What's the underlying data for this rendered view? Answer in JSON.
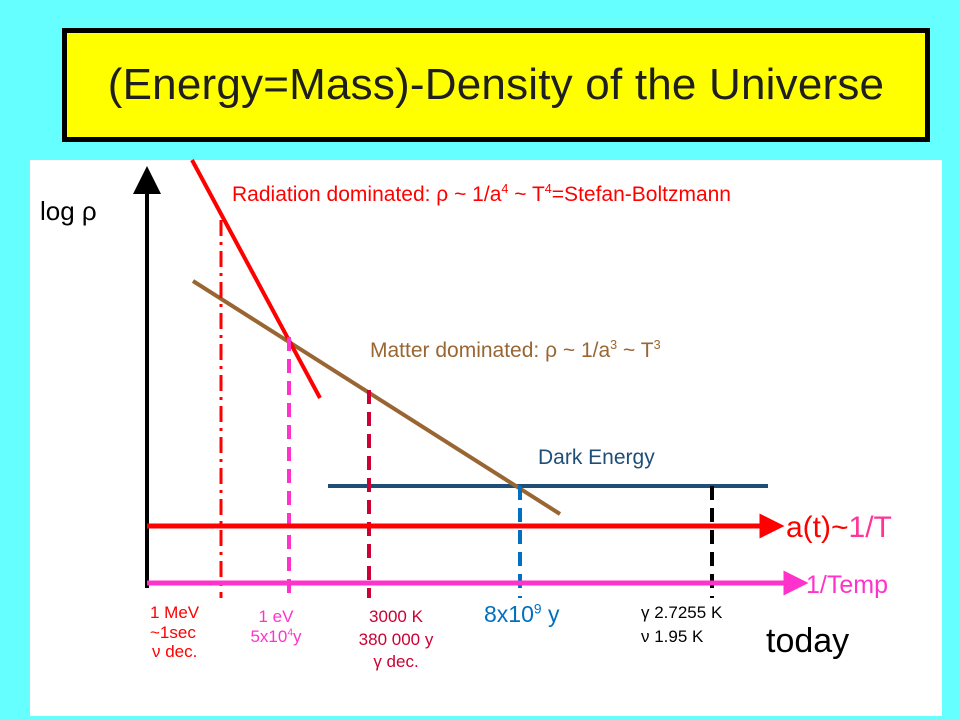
{
  "title": "(Energy=Mass)-Density of the Universe",
  "y_axis_label": "log ρ",
  "curves": {
    "radiation": {
      "prefix": "Radiation dominated: ρ ~ 1/a",
      "exp1": "4",
      "mid": " ~ T",
      "exp2": "4",
      "suffix": "=Stefan-Boltzmann",
      "color": "#FF0000"
    },
    "matter": {
      "prefix": "Matter dominated: ρ ~ 1/a",
      "exp1": "3",
      "mid": " ~ T",
      "exp2": "3",
      "color": "#996633"
    },
    "dark_energy": {
      "label": "Dark Energy",
      "color": "#1F4E79"
    }
  },
  "axes": {
    "scale_factor": {
      "label_pre": "a(t)~",
      "label_post": "1/T",
      "color": "#FF0000"
    },
    "inverse_temp": {
      "label": "1/Temp",
      "color": "#FF33CC"
    }
  },
  "epochs": {
    "nu_decoupling": {
      "line1": "1 MeV",
      "line2": "~1sec",
      "line3": "ν dec.",
      "color": "#FF0000"
    },
    "equality": {
      "line1": "1 eV",
      "line2_pre": "5x10",
      "line2_exp": "4",
      "line2_post": "y",
      "color": "#FF33CC"
    },
    "recombination": {
      "line1": "3000 K",
      "line2": "380 000 y",
      "line3": "γ dec.",
      "color": "#CC0033"
    },
    "dark_energy_onset": {
      "pre": "8x10",
      "exp": "9",
      "post": " y",
      "color": "#0070C0"
    },
    "today_marker": {
      "line1": "γ 2.7255 K",
      "line2": "ν  1.95 K",
      "color": "#000000"
    }
  },
  "today_label": "today"
}
